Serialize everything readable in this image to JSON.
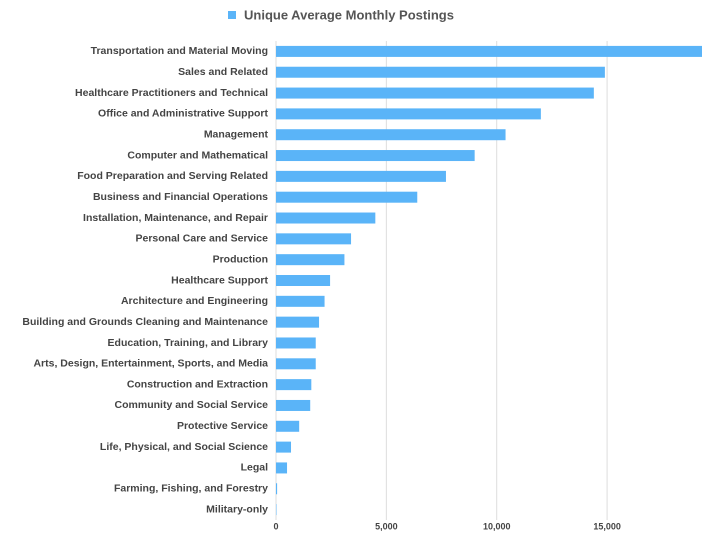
{
  "chart_data": {
    "type": "bar",
    "orientation": "horizontal",
    "categories": [
      "Transportation and Material Moving",
      "Sales and Related",
      "Healthcare Practitioners and Technical",
      "Office and Administrative Support",
      "Management",
      "Computer and Mathematical",
      "Food Preparation and Serving Related",
      "Business and Financial Operations",
      "Installation, Maintenance, and Repair",
      "Personal Care and Service",
      "Production",
      "Healthcare Support",
      "Architecture and Engineering",
      "Building and Grounds Cleaning and Maintenance",
      "Education, Training, and Library",
      "Arts, Design, Entertainment, Sports, and Media",
      "Construction and Extraction",
      "Community and Social Service",
      "Protective Service",
      "Life, Physical, and Social Science",
      "Legal",
      "Farming, Fishing, and Forestry",
      "Military-only"
    ],
    "series": [
      {
        "name": "Unique Average Monthly Postings",
        "color": "#5ab4f8",
        "values": [
          19300,
          14900,
          14400,
          12000,
          10400,
          9000,
          7700,
          6400,
          4500,
          3400,
          3100,
          2450,
          2200,
          1950,
          1800,
          1800,
          1600,
          1550,
          1050,
          680,
          500,
          50,
          20
        ]
      }
    ],
    "xlim": [
      0,
      19300
    ],
    "xticks": [
      0,
      {
        "value": 5000,
        "label": "5,000"
      },
      {
        "value": 10000,
        "label": "10,000"
      },
      {
        "value": 15000,
        "label": "15,000"
      }
    ],
    "grid": true,
    "legend": "top"
  }
}
